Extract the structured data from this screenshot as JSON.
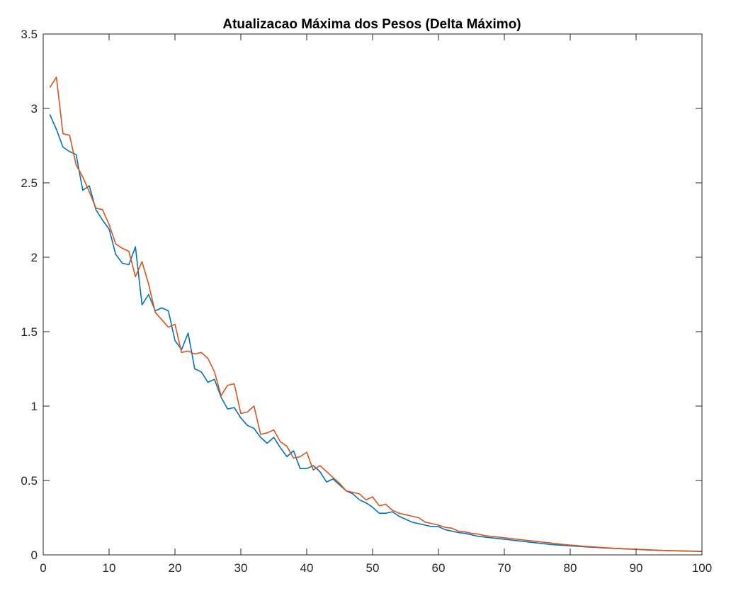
{
  "chart_data": {
    "type": "line",
    "title": "Atualizacao Máxima dos Pesos (Delta Máximo)",
    "xlabel": "",
    "ylabel": "",
    "xlim": [
      0,
      100
    ],
    "ylim": [
      0,
      3.5
    ],
    "x_ticks": [
      0,
      10,
      20,
      30,
      40,
      50,
      60,
      70,
      80,
      90,
      100
    ],
    "y_ticks": [
      0,
      0.5,
      1,
      1.5,
      2,
      2.5,
      3,
      3.5
    ],
    "x_tick_labels": [
      "0",
      "10",
      "20",
      "30",
      "40",
      "50",
      "60",
      "70",
      "80",
      "90",
      "100"
    ],
    "y_tick_labels": [
      "0",
      "0.5",
      "1",
      "1.5",
      "2",
      "2.5",
      "3",
      "3.5"
    ],
    "grid": false,
    "legend": "none",
    "x": [
      1,
      2,
      3,
      4,
      5,
      6,
      7,
      8,
      9,
      10,
      11,
      12,
      13,
      14,
      15,
      16,
      17,
      18,
      19,
      20,
      21,
      22,
      23,
      24,
      25,
      26,
      27,
      28,
      29,
      30,
      31,
      32,
      33,
      34,
      35,
      36,
      37,
      38,
      39,
      40,
      41,
      42,
      43,
      44,
      45,
      46,
      47,
      48,
      49,
      50,
      51,
      52,
      53,
      54,
      55,
      56,
      57,
      58,
      59,
      60,
      61,
      62,
      63,
      64,
      65,
      66,
      67,
      68,
      69,
      70,
      71,
      72,
      73,
      74,
      75,
      76,
      77,
      78,
      79,
      80,
      81,
      82,
      83,
      84,
      85,
      86,
      87,
      88,
      89,
      90,
      91,
      92,
      93,
      94,
      95,
      96,
      97,
      98,
      99,
      100
    ],
    "series": [
      {
        "color": "#0072BD",
        "values": [
          2.96,
          2.86,
          2.74,
          2.71,
          2.69,
          2.45,
          2.48,
          2.32,
          2.25,
          2.19,
          2.02,
          1.96,
          1.95,
          2.07,
          1.68,
          1.75,
          1.64,
          1.66,
          1.64,
          1.44,
          1.38,
          1.49,
          1.25,
          1.23,
          1.16,
          1.18,
          1.06,
          0.98,
          0.99,
          0.92,
          0.87,
          0.85,
          0.79,
          0.75,
          0.79,
          0.72,
          0.66,
          0.7,
          0.58,
          0.58,
          0.6,
          0.56,
          0.49,
          0.51,
          0.47,
          0.43,
          0.41,
          0.37,
          0.35,
          0.32,
          0.28,
          0.28,
          0.29,
          0.26,
          0.24,
          0.22,
          0.21,
          0.2,
          0.19,
          0.19,
          0.17,
          0.16,
          0.15,
          0.145,
          0.135,
          0.125,
          0.12,
          0.115,
          0.11,
          0.105,
          0.1,
          0.095,
          0.09,
          0.085,
          0.08,
          0.075,
          0.07,
          0.067,
          0.064,
          0.061,
          0.058,
          0.055,
          0.052,
          0.05,
          0.047,
          0.045,
          0.043,
          0.041,
          0.039,
          0.037,
          0.035,
          0.033,
          0.031,
          0.03,
          0.028,
          0.027,
          0.026,
          0.025,
          0.024,
          0.023
        ]
      },
      {
        "color": "#D95319",
        "values": [
          3.14,
          3.21,
          2.83,
          2.82,
          2.62,
          2.54,
          2.44,
          2.33,
          2.32,
          2.22,
          2.09,
          2.06,
          2.04,
          1.87,
          1.97,
          1.82,
          1.63,
          1.58,
          1.53,
          1.55,
          1.36,
          1.37,
          1.35,
          1.36,
          1.32,
          1.23,
          1.07,
          1.14,
          1.15,
          0.95,
          0.96,
          1.0,
          0.81,
          0.82,
          0.84,
          0.76,
          0.73,
          0.65,
          0.66,
          0.69,
          0.57,
          0.6,
          0.56,
          0.52,
          0.48,
          0.43,
          0.42,
          0.41,
          0.37,
          0.39,
          0.33,
          0.34,
          0.3,
          0.28,
          0.27,
          0.26,
          0.25,
          0.22,
          0.21,
          0.2,
          0.185,
          0.18,
          0.16,
          0.155,
          0.145,
          0.14,
          0.13,
          0.125,
          0.12,
          0.115,
          0.11,
          0.105,
          0.1,
          0.095,
          0.09,
          0.085,
          0.08,
          0.075,
          0.07,
          0.066,
          0.062,
          0.058,
          0.055,
          0.052,
          0.049,
          0.046,
          0.044,
          0.042,
          0.04,
          0.038,
          0.036,
          0.034,
          0.032,
          0.03,
          0.029,
          0.028,
          0.027,
          0.026,
          0.025,
          0.024
        ]
      }
    ]
  }
}
